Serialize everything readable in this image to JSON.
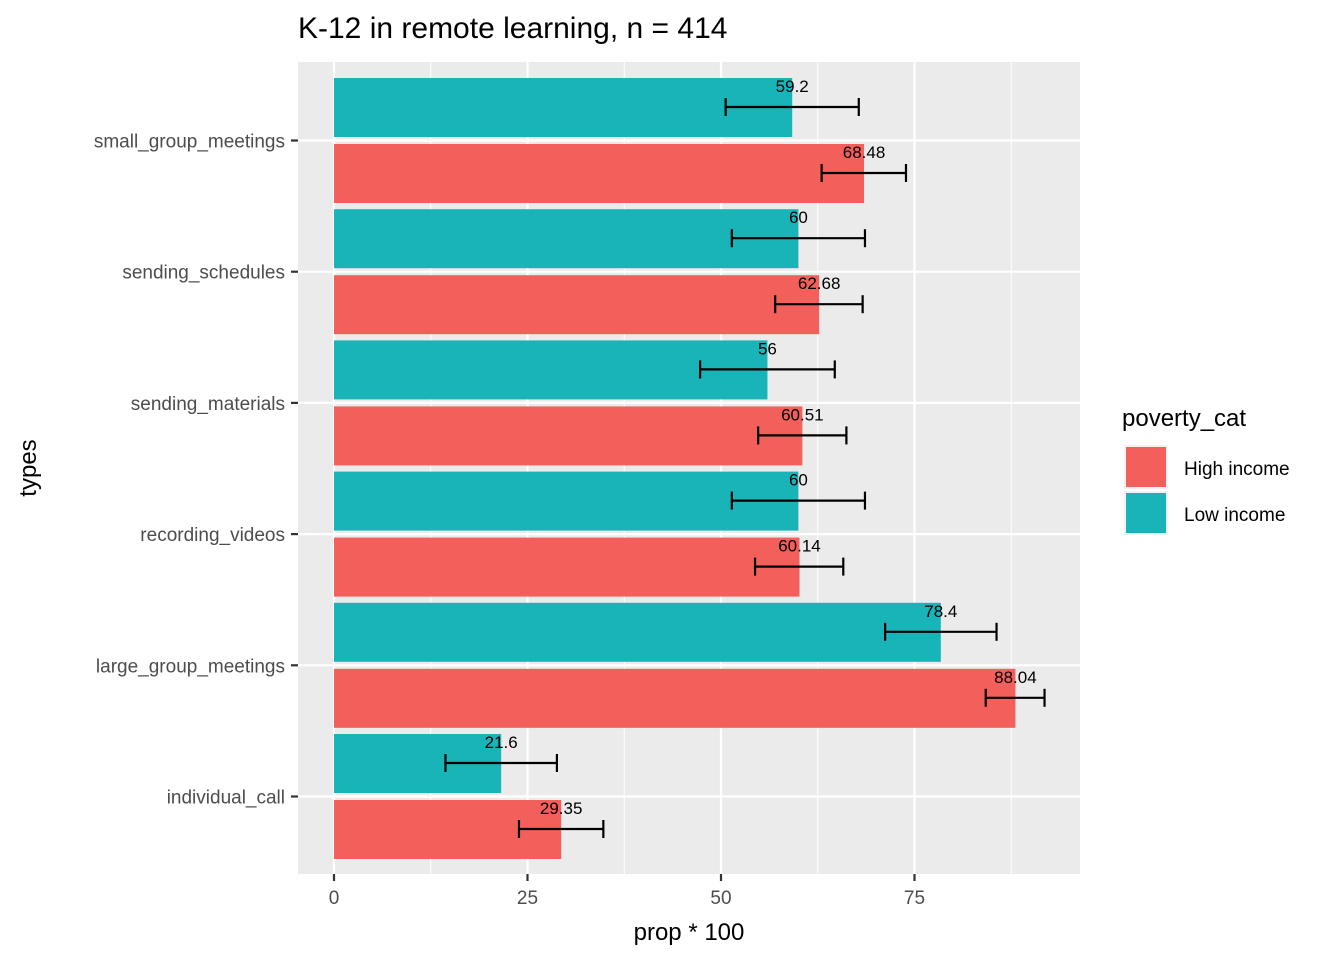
{
  "chart_data": {
    "type": "bar",
    "orientation": "horizontal",
    "title": "K-12 in remote learning, n = 414",
    "xlabel": "prop * 100",
    "ylabel": "types",
    "xlim": [
      -3.5,
      96
    ],
    "x_ticks": [
      0,
      25,
      50,
      75
    ],
    "x_tick_labels": [
      "0",
      "25",
      "50",
      "75"
    ],
    "categories": [
      "small_group_meetings",
      "sending_schedules",
      "sending_materials",
      "recording_videos",
      "large_group_meetings",
      "individual_call"
    ],
    "series": [
      {
        "name": "Low income",
        "color": "#19B4B8",
        "values": [
          59.2,
          60,
          56,
          60,
          78.4,
          21.6
        ],
        "labels": [
          "59.2",
          "60",
          "56",
          "60",
          "78.4",
          "21.6"
        ],
        "ci_low": [
          50.6,
          51.4,
          47.3,
          51.4,
          71.2,
          14.4
        ],
        "ci_high": [
          67.8,
          68.6,
          64.7,
          68.6,
          85.6,
          28.8
        ]
      },
      {
        "name": "High income",
        "color": "#F35F5A",
        "values": [
          68.48,
          62.68,
          60.51,
          60.14,
          88.04,
          29.35
        ],
        "labels": [
          "68.48",
          "62.68",
          "60.51",
          "60.14",
          "88.04",
          "29.35"
        ],
        "ci_low": [
          63.0,
          57.0,
          54.8,
          54.4,
          84.2,
          23.9
        ],
        "ci_high": [
          73.9,
          68.3,
          66.2,
          65.8,
          91.8,
          34.8
        ]
      }
    ],
    "grid": true,
    "legend": {
      "title": "poverty_cat",
      "placement": "right",
      "entries": [
        {
          "label": "High income",
          "color": "#F35F5A"
        },
        {
          "label": "Low income",
          "color": "#19B4B8"
        }
      ]
    }
  }
}
